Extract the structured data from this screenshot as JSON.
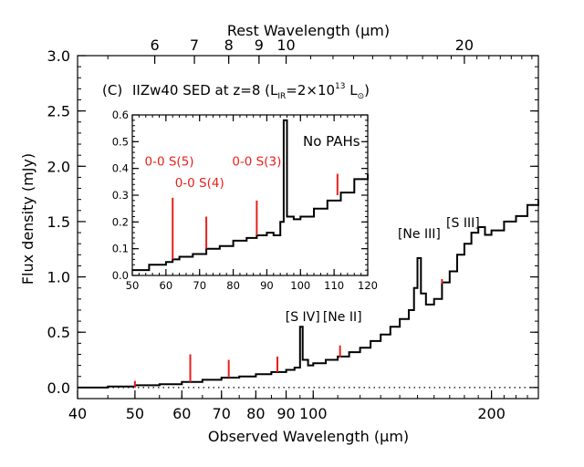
{
  "chart_data": [
    {
      "type": "line",
      "panel": "main",
      "title_parts": {
        "tag": "(C)",
        "lead": "IIZw40 SED at z=8 (L",
        "sub": "IR",
        "mid": "=2×10",
        "sup": "13",
        "unit": " L",
        "unit_sub": "⊙",
        "close": ")"
      },
      "xlabel": "Observed Wavelength (μm)",
      "ylabel": "Flux density (mJy)",
      "x2label": "Rest Wavelength (μm)",
      "x_scale": "log",
      "xlim": [
        40,
        240
      ],
      "ylim": [
        -0.1,
        3.0
      ],
      "x_ticks": [
        40,
        50,
        60,
        70,
        80,
        90,
        100,
        200
      ],
      "x_tick_labels": [
        "40",
        "50",
        "60",
        "70",
        "80",
        "90",
        "100",
        "200"
      ],
      "y_ticks": [
        0.0,
        0.5,
        1.0,
        1.5,
        2.0,
        2.5,
        3.0
      ],
      "y_tick_labels": [
        "0.0",
        "0.5",
        "1.0",
        "1.5",
        "2.0",
        "2.5",
        "3.0"
      ],
      "x2_ticks": [
        6,
        7,
        8,
        9,
        10,
        20
      ],
      "x2_tick_labels": [
        "6",
        "7",
        "8",
        "9",
        "10",
        "20"
      ],
      "redshift": 8,
      "zero_line": true,
      "series": [
        {
          "x": [
            40,
            45,
            50,
            55,
            60,
            65,
            70,
            75,
            80,
            85,
            90,
            93,
            95,
            96,
            98,
            100,
            105,
            110,
            115,
            120,
            125,
            130,
            135,
            140,
            145,
            148,
            150,
            152,
            155,
            160,
            165,
            170,
            175,
            180,
            185,
            190,
            195,
            200,
            210,
            220,
            230,
            240
          ],
          "y": [
            0.0,
            0.01,
            0.02,
            0.03,
            0.05,
            0.07,
            0.09,
            0.1,
            0.12,
            0.14,
            0.16,
            0.18,
            0.55,
            0.25,
            0.2,
            0.22,
            0.25,
            0.28,
            0.32,
            0.36,
            0.42,
            0.48,
            0.55,
            0.62,
            0.7,
            0.9,
            1.17,
            0.85,
            0.75,
            0.8,
            0.95,
            1.05,
            1.2,
            1.3,
            1.4,
            1.45,
            1.38,
            1.42,
            1.5,
            1.55,
            1.65,
            1.7
          ]
        }
      ],
      "markers": [
        {
          "x": 50,
          "y0": 0.0,
          "y1": 0.06
        },
        {
          "x": 62,
          "y0": 0.05,
          "y1": 0.3
        },
        {
          "x": 72,
          "y0": 0.09,
          "y1": 0.25
        },
        {
          "x": 87,
          "y0": 0.14,
          "y1": 0.28
        },
        {
          "x": 111,
          "y0": 0.27,
          "y1": 0.38
        },
        {
          "x": 165,
          "y0": 0.94,
          "y1": 0.98
        }
      ],
      "annotations": [
        {
          "text": "[S IV]",
          "x": 96,
          "y": 0.6
        },
        {
          "text": "[Ne II]",
          "x": 112,
          "y": 0.6
        },
        {
          "text": "[Ne III]",
          "x": 151,
          "y": 1.35
        },
        {
          "text": "[S III]",
          "x": 179,
          "y": 1.45
        }
      ]
    },
    {
      "type": "line",
      "panel": "inset",
      "note": "No PAHs",
      "x_scale": "linear",
      "xlim": [
        50,
        120
      ],
      "ylim": [
        0.0,
        0.6
      ],
      "x_ticks": [
        50,
        60,
        70,
        80,
        90,
        100,
        110,
        120
      ],
      "x_tick_labels": [
        "50",
        "60",
        "70",
        "80",
        "90",
        "100",
        "110",
        "120"
      ],
      "y_ticks": [
        0.0,
        0.1,
        0.2,
        0.3,
        0.4,
        0.5,
        0.6
      ],
      "y_tick_labels": [
        "0.0",
        "0.1",
        "0.2",
        "0.3",
        "0.4",
        "0.5",
        "0.6"
      ],
      "series": [
        {
          "x": [
            50,
            55,
            60,
            62,
            64,
            68,
            72,
            76,
            80,
            84,
            87,
            90,
            92,
            94,
            95,
            96,
            98,
            100,
            104,
            108,
            112,
            116,
            120
          ],
          "y": [
            0.02,
            0.04,
            0.05,
            0.06,
            0.07,
            0.08,
            0.1,
            0.11,
            0.13,
            0.14,
            0.15,
            0.16,
            0.15,
            0.2,
            0.58,
            0.22,
            0.21,
            0.22,
            0.25,
            0.28,
            0.31,
            0.36,
            0.38
          ]
        }
      ],
      "markers": [
        {
          "x": 62,
          "y0": 0.06,
          "y1": 0.29
        },
        {
          "x": 72,
          "y0": 0.1,
          "y1": 0.22
        },
        {
          "x": 87,
          "y0": 0.15,
          "y1": 0.28
        },
        {
          "x": 111,
          "y0": 0.3,
          "y1": 0.38
        }
      ],
      "line_labels": [
        {
          "text": "0-0 S(5)",
          "x": 61,
          "y": 0.41
        },
        {
          "text": "0-0 S(4)",
          "x": 70,
          "y": 0.33
        },
        {
          "text": "0-0 S(3)",
          "x": 87,
          "y": 0.41
        }
      ]
    }
  ],
  "colors": {
    "data": "#000000",
    "marker": "#e8201c",
    "label": "#e8201c",
    "zero_line": "#000000"
  }
}
